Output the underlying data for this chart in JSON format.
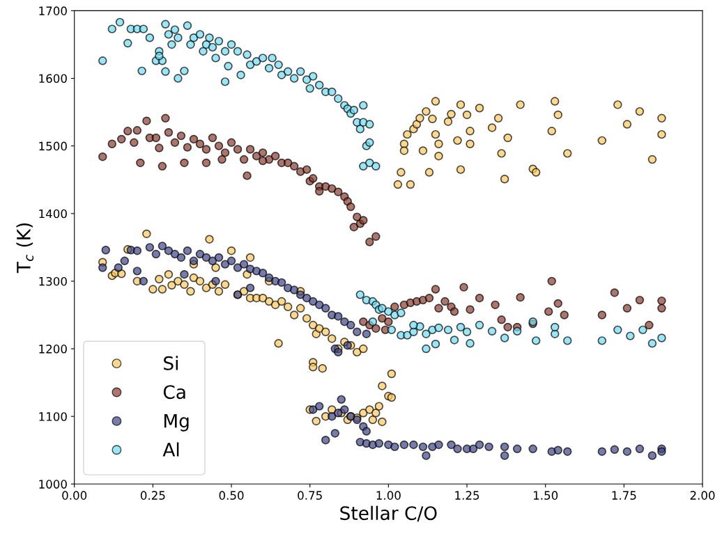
{
  "chart_data": {
    "type": "scatter",
    "xlabel": "Stellar C/O",
    "ylabel": "T$_{c}$ (K)",
    "xlim": [
      0.0,
      2.0
    ],
    "xticks": [
      {
        "value": 0,
        "label": "0.00"
      },
      {
        "value": 0.25,
        "label": "0.25"
      },
      {
        "value": 0.5,
        "label": "0.50"
      },
      {
        "value": 0.75,
        "label": "0.75"
      },
      {
        "value": 1.0,
        "label": "1.00"
      },
      {
        "value": 1.25,
        "label": "1.25"
      },
      {
        "value": 1.5,
        "label": "1.50"
      },
      {
        "value": 1.75,
        "label": "1.75"
      },
      {
        "value": 2.0,
        "label": "2.00"
      }
    ],
    "ylim": [
      1000,
      1700
    ],
    "yticks": [
      1000,
      1100,
      1200,
      1300,
      1400,
      1500,
      1600,
      1700
    ],
    "grid": false,
    "legend": "bottom left",
    "marker": "circle",
    "series": [
      {
        "name": "Si",
        "color": "#fec95c",
        "x": [
          0.09,
          0.12,
          0.13,
          0.15,
          0.17,
          0.2,
          0.23,
          0.25,
          0.27,
          0.28,
          0.3,
          0.31,
          0.33,
          0.35,
          0.37,
          0.38,
          0.4,
          0.42,
          0.44,
          0.46,
          0.48,
          0.5,
          0.52,
          0.54,
          0.56,
          0.58,
          0.6,
          0.62,
          0.64,
          0.65,
          0.66,
          0.68,
          0.7,
          0.72,
          0.74,
          0.76,
          0.77,
          0.78,
          0.8,
          0.82,
          0.84,
          0.86,
          0.88,
          0.9,
          0.92,
          0.38,
          0.45,
          0.55,
          0.62,
          0.72,
          0.43,
          0.56,
          0.76,
          0.76,
          0.79,
          0.75,
          0.77,
          0.8,
          0.82,
          0.85,
          0.87,
          0.88,
          0.9,
          0.92,
          0.94,
          0.95,
          0.96,
          0.97,
          0.98,
          0.98,
          1.0,
          1.01,
          1.01,
          1.03,
          1.04,
          1.05,
          1.05,
          1.06,
          1.07,
          1.08,
          1.09,
          1.1,
          1.11,
          1.12,
          1.13,
          1.14,
          1.15,
          1.15,
          1.16,
          1.16,
          1.19,
          1.2,
          1.22,
          1.23,
          1.23,
          1.25,
          1.26,
          1.26,
          1.29,
          1.33,
          1.35,
          1.36,
          1.37,
          1.38,
          1.42,
          1.46,
          1.47,
          1.52,
          1.53,
          1.54,
          1.57,
          1.68,
          1.73,
          1.76,
          1.8,
          1.84,
          1.87,
          1.87
        ],
        "values": [
          1328,
          1308,
          1312,
          1311,
          1347,
          1300,
          1370,
          1288,
          1303,
          1288,
          1310,
          1294,
          1300,
          1295,
          1285,
          1305,
          1300,
          1290,
          1295,
          1285,
          1295,
          1345,
          1280,
          1285,
          1275,
          1275,
          1275,
          1270,
          1265,
          1208,
          1270,
          1262,
          1250,
          1260,
          1245,
          1235,
          1222,
          1230,
          1225,
          1215,
          1200,
          1210,
          1205,
          1195,
          1200,
          1325,
          1320,
          1310,
          1300,
          1285,
          1362,
          1335,
          1180,
          1173,
          1171,
          1110,
          1093,
          1100,
          1110,
          1105,
          1095,
          1100,
          1098,
          1105,
          1110,
          1095,
          1105,
          1115,
          1145,
          1092,
          1130,
          1128,
          1163,
          1443,
          1461,
          1503,
          1493,
          1517,
          1443,
          1525,
          1532,
          1541,
          1493,
          1551,
          1461,
          1540,
          1566,
          1517,
          1503,
          1485,
          1536,
          1547,
          1508,
          1561,
          1465,
          1546,
          1522,
          1503,
          1556,
          1527,
          1541,
          1489,
          1451,
          1512,
          1561,
          1466,
          1461,
          1522,
          1566,
          1546,
          1489,
          1508,
          1561,
          1532,
          1551,
          1480,
          1541,
          1517
        ]
      },
      {
        "name": "Ca",
        "color": "#8a3a2c",
        "x": [
          0.09,
          0.12,
          0.15,
          0.17,
          0.19,
          0.2,
          0.21,
          0.23,
          0.24,
          0.26,
          0.27,
          0.28,
          0.29,
          0.3,
          0.32,
          0.34,
          0.36,
          0.38,
          0.4,
          0.42,
          0.44,
          0.46,
          0.48,
          0.5,
          0.52,
          0.54,
          0.55,
          0.56,
          0.58,
          0.6,
          0.62,
          0.64,
          0.66,
          0.68,
          0.7,
          0.72,
          0.74,
          0.75,
          0.76,
          0.78,
          0.78,
          0.8,
          0.82,
          0.84,
          0.86,
          0.87,
          0.88,
          0.9,
          0.91,
          0.89,
          0.92,
          0.94,
          0.96,
          0.35,
          0.47,
          0.42,
          0.6,
          0.92,
          0.94,
          0.96,
          0.98,
          0.99,
          1.0,
          1.02,
          1.05,
          1.07,
          1.09,
          1.11,
          1.13,
          1.15,
          1.16,
          1.18,
          1.2,
          1.21,
          1.24,
          1.26,
          1.29,
          1.34,
          1.36,
          1.38,
          1.41,
          1.42,
          1.46,
          1.51,
          1.52,
          1.54,
          1.56,
          1.68,
          1.72,
          1.76,
          1.8,
          1.83,
          1.87,
          1.87
        ],
        "values": [
          1484,
          1503,
          1510,
          1522,
          1505,
          1523,
          1475,
          1537,
          1512,
          1512,
          1497,
          1470,
          1541,
          1520,
          1505,
          1515,
          1498,
          1510,
          1503,
          1495,
          1512,
          1500,
          1490,
          1505,
          1495,
          1480,
          1456,
          1495,
          1485,
          1490,
          1480,
          1485,
          1475,
          1475,
          1470,
          1462,
          1465,
          1448,
          1452,
          1440,
          1433,
          1440,
          1437,
          1432,
          1425,
          1418,
          1410,
          1395,
          1385,
          1380,
          1390,
          1358,
          1366,
          1475,
          1480,
          1475,
          1478,
          1240,
          1235,
          1230,
          1245,
          1228,
          1240,
          1262,
          1265,
          1268,
          1270,
          1272,
          1275,
          1288,
          1260,
          1270,
          1262,
          1255,
          1291,
          1258,
          1275,
          1265,
          1243,
          1232,
          1232,
          1276,
          1237,
          1255,
          1300,
          1267,
          1250,
          1250,
          1283,
          1260,
          1272,
          1235,
          1271,
          1260
        ]
      },
      {
        "name": "Mg",
        "color": "#3d4488",
        "x": [
          0.09,
          0.1,
          0.14,
          0.16,
          0.18,
          0.2,
          0.22,
          0.24,
          0.26,
          0.28,
          0.3,
          0.32,
          0.34,
          0.36,
          0.38,
          0.4,
          0.42,
          0.44,
          0.46,
          0.48,
          0.5,
          0.52,
          0.54,
          0.56,
          0.58,
          0.6,
          0.62,
          0.64,
          0.66,
          0.68,
          0.7,
          0.72,
          0.74,
          0.76,
          0.78,
          0.8,
          0.82,
          0.84,
          0.86,
          0.88,
          0.83,
          0.84,
          0.87,
          0.9,
          0.93,
          0.56,
          0.52,
          0.35,
          0.45,
          0.2,
          0.76,
          0.78,
          0.8,
          0.82,
          0.84,
          0.85,
          0.86,
          0.88,
          0.9,
          0.92,
          0.93,
          0.83,
          0.91,
          0.93,
          0.95,
          0.97,
          1.0,
          1.02,
          1.05,
          1.08,
          1.11,
          1.12,
          1.14,
          1.16,
          1.2,
          1.22,
          1.25,
          1.27,
          1.29,
          1.32,
          1.37,
          1.37,
          1.41,
          1.46,
          1.52,
          1.54,
          1.57,
          1.68,
          1.72,
          1.76,
          1.8,
          1.84,
          1.87,
          1.87
        ],
        "values": [
          1320,
          1346,
          1320,
          1330,
          1346,
          1345,
          1300,
          1350,
          1340,
          1352,
          1345,
          1340,
          1335,
          1345,
          1330,
          1340,
          1335,
          1330,
          1335,
          1325,
          1330,
          1320,
          1325,
          1318,
          1315,
          1312,
          1305,
          1300,
          1298,
          1290,
          1287,
          1280,
          1275,
          1270,
          1265,
          1260,
          1250,
          1248,
          1240,
          1235,
          1200,
          1195,
          1205,
          1225,
          1222,
          1290,
          1280,
          1310,
          1300,
          1315,
          1110,
          1115,
          1065,
          1100,
          1105,
          1125,
          1110,
          1100,
          1095,
          1085,
          1078,
          1075,
          1062,
          1060,
          1058,
          1060,
          1058,
          1055,
          1058,
          1058,
          1055,
          1042,
          1055,
          1058,
          1058,
          1052,
          1052,
          1052,
          1058,
          1055,
          1055,
          1042,
          1052,
          1052,
          1048,
          1050,
          1048,
          1048,
          1051,
          1048,
          1052,
          1042,
          1052,
          1048
        ]
      },
      {
        "name": "Al",
        "color": "#6edcf2",
        "x": [
          0.09,
          0.12,
          0.145,
          0.17,
          0.18,
          0.2,
          0.215,
          0.22,
          0.24,
          0.26,
          0.27,
          0.28,
          0.29,
          0.3,
          0.31,
          0.32,
          0.33,
          0.35,
          0.36,
          0.37,
          0.38,
          0.4,
          0.41,
          0.42,
          0.43,
          0.44,
          0.45,
          0.46,
          0.48,
          0.49,
          0.5,
          0.52,
          0.53,
          0.55,
          0.56,
          0.58,
          0.6,
          0.62,
          0.63,
          0.65,
          0.66,
          0.68,
          0.7,
          0.72,
          0.74,
          0.75,
          0.76,
          0.78,
          0.8,
          0.82,
          0.84,
          0.86,
          0.87,
          0.88,
          0.89,
          0.9,
          0.91,
          0.92,
          0.93,
          0.94,
          0.92,
          0.94,
          0.92,
          0.94,
          0.96,
          0.33,
          0.48,
          0.27,
          0.29,
          0.91,
          0.93,
          0.95,
          0.96,
          0.97,
          0.98,
          1.0,
          1.02,
          1.04,
          0.95,
          1.01,
          1.04,
          1.06,
          1.08,
          1.1,
          1.12,
          1.14,
          1.16,
          1.19,
          1.21,
          1.23,
          1.25,
          1.29,
          1.33,
          1.37,
          1.41,
          1.46,
          1.47,
          1.53,
          1.57,
          1.68,
          1.73,
          1.77,
          1.81,
          1.84,
          1.87,
          1.12,
          1.15,
          1.26,
          1.08,
          1.53
        ],
        "values": [
          1626,
          1673,
          1683,
          1652,
          1673,
          1673,
          1611,
          1673,
          1660,
          1626,
          1640,
          1626,
          1680,
          1665,
          1650,
          1672,
          1660,
          1611,
          1678,
          1650,
          1660,
          1665,
          1640,
          1650,
          1660,
          1646,
          1630,
          1655,
          1640,
          1618,
          1650,
          1640,
          1605,
          1635,
          1620,
          1625,
          1630,
          1615,
          1630,
          1620,
          1605,
          1610,
          1600,
          1610,
          1598,
          1585,
          1603,
          1590,
          1580,
          1580,
          1570,
          1560,
          1555,
          1548,
          1553,
          1535,
          1525,
          1535,
          1500,
          1505,
          1560,
          1532,
          1470,
          1475,
          1470,
          1600,
          1595,
          1633,
          1610,
          1280,
          1272,
          1270,
          1265,
          1258,
          1260,
          1255,
          1250,
          1253,
          1240,
          1228,
          1220,
          1220,
          1225,
          1233,
          1222,
          1228,
          1231,
          1228,
          1213,
          1232,
          1225,
          1235,
          1226,
          1216,
          1226,
          1240,
          1212,
          1222,
          1212,
          1212,
          1228,
          1219,
          1228,
          1208,
          1216,
          1200,
          1207,
          1208,
          1235,
          1232
        ]
      }
    ]
  }
}
